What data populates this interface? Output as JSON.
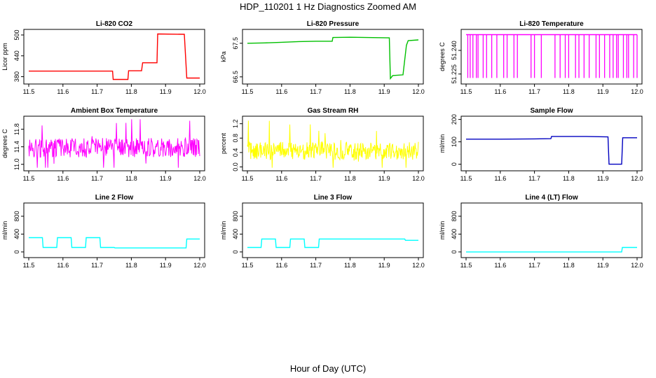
{
  "figure": {
    "title": "HDP_110201  1 Hz Diagnostics Zoomed AM",
    "xlabel": "Hour of Day (UTC)"
  },
  "chart_data": [
    {
      "type": "line",
      "title": "Li-820 CO2",
      "ylabel": "Licor ppm",
      "color": "#ff0000",
      "xlim": [
        11.5,
        12.0
      ],
      "ylim": [
        365,
        510
      ],
      "xticks": [
        "11.5",
        "11.6",
        "11.7",
        "11.8",
        "11.9",
        "12.0"
      ],
      "yticks": [
        "380",
        "440",
        "500"
      ],
      "x": [
        11.5,
        11.6,
        11.7,
        11.745,
        11.747,
        11.79,
        11.792,
        11.83,
        11.833,
        11.875,
        11.877,
        11.955,
        11.962,
        12.0
      ],
      "y": [
        396,
        396,
        396,
        396,
        372,
        372,
        397,
        397,
        420,
        420,
        503,
        502,
        376,
        376
      ]
    },
    {
      "type": "line",
      "title": "Li-820 Pressure",
      "ylabel": "kPa",
      "color": "#00c000",
      "xlim": [
        11.5,
        12.0
      ],
      "ylim": [
        66.35,
        67.85
      ],
      "xticks": [
        "11.5",
        "11.6",
        "11.7",
        "11.8",
        "11.9",
        "12.0"
      ],
      "yticks": [
        "66.5",
        "67.5"
      ],
      "x": [
        11.5,
        11.55,
        11.6,
        11.65,
        11.7,
        11.748,
        11.75,
        11.8,
        11.85,
        11.915,
        11.918,
        11.925,
        11.955,
        11.965,
        11.97,
        12.0
      ],
      "y": [
        67.5,
        67.51,
        67.53,
        67.55,
        67.56,
        67.56,
        67.67,
        67.68,
        67.67,
        67.66,
        66.45,
        66.54,
        66.56,
        67.44,
        67.58,
        67.6
      ]
    },
    {
      "type": "line",
      "title": "Li-820 Temperature",
      "ylabel": "degrees C",
      "color": "#ff00ff",
      "xlim": [
        11.5,
        12.0
      ],
      "ylim": [
        51.22,
        51.252
      ],
      "xticks": [
        "11.5",
        "11.6",
        "11.7",
        "11.8",
        "11.9",
        "12.0"
      ],
      "yticks": [
        "51.225",
        "51.240"
      ],
      "top": 51.25,
      "bottom": 51.2225,
      "drops": [
        11.505,
        11.512,
        11.52,
        11.53,
        11.535,
        11.55,
        11.56,
        11.575,
        11.59,
        11.61,
        11.62,
        11.64,
        11.65,
        11.69,
        11.7,
        11.72,
        11.76,
        11.775,
        11.79,
        11.8,
        11.82,
        11.83,
        11.845,
        11.86,
        11.88,
        11.89,
        11.905,
        11.92,
        11.93,
        11.94,
        11.945,
        11.96,
        11.97,
        11.975,
        11.99,
        12.0
      ]
    },
    {
      "type": "line",
      "title": "Ambient Box Temperature",
      "ylabel": "degrees C",
      "color": "#ff00ff",
      "xlim": [
        11.5,
        12.0
      ],
      "ylim": [
        10.9,
        12.05
      ],
      "xticks": [
        "11.5",
        "11.6",
        "11.7",
        "11.8",
        "11.9",
        "12.0"
      ],
      "yticks": [
        "11.0",
        "11.4",
        "11.8"
      ],
      "noise": {
        "center": 11.38,
        "amplitude": 0.22,
        "peak": 0.5,
        "points": 360
      }
    },
    {
      "type": "line",
      "title": "Gas Stream RH",
      "ylabel": "percent",
      "color": "#ffff00",
      "xlim": [
        11.5,
        12.0
      ],
      "ylim": [
        -0.05,
        1.35
      ],
      "xticks": [
        "11.5",
        "11.6",
        "11.7",
        "11.8",
        "11.9",
        "12.0"
      ],
      "yticks": [
        "0.0",
        "0.4",
        "0.8",
        "1.2"
      ],
      "noise": {
        "center": 0.45,
        "amplitude": 0.25,
        "peak": 0.55,
        "points": 360
      }
    },
    {
      "type": "line",
      "title": "Sample Flow",
      "ylabel": "ml/min",
      "color": "#0000c0",
      "xlim": [
        11.5,
        12.0
      ],
      "ylim": [
        -20,
        205
      ],
      "xticks": [
        "11.5",
        "11.6",
        "11.7",
        "11.8",
        "11.9",
        "12.0"
      ],
      "yticks": [
        "0",
        "100",
        "200"
      ],
      "x": [
        11.5,
        11.6,
        11.7,
        11.748,
        11.75,
        11.8,
        11.85,
        11.915,
        11.918,
        11.955,
        11.958,
        11.965,
        12.0
      ],
      "y": [
        112,
        112,
        113,
        114,
        124,
        124,
        124,
        122,
        0,
        0,
        118,
        118,
        118
      ]
    },
    {
      "type": "line",
      "title": "Line 2 Flow",
      "ylabel": "ml/min",
      "color": "#00ffff",
      "xlim": [
        11.5,
        12.0
      ],
      "ylim": [
        -80,
        1050
      ],
      "xticks": [
        "11.5",
        "11.6",
        "11.7",
        "11.8",
        "11.9",
        "12.0"
      ],
      "yticks": [
        "0",
        "400",
        "800"
      ],
      "x": [
        11.5,
        11.54,
        11.542,
        11.582,
        11.584,
        11.624,
        11.626,
        11.666,
        11.668,
        11.708,
        11.71,
        11.75,
        11.752,
        11.96,
        11.962,
        12.0
      ],
      "y": [
        320,
        320,
        100,
        100,
        320,
        320,
        100,
        100,
        320,
        320,
        100,
        100,
        90,
        90,
        290,
        290
      ]
    },
    {
      "type": "line",
      "title": "Line 3 Flow",
      "ylabel": "ml/min",
      "color": "#00ffff",
      "xlim": [
        11.5,
        12.0
      ],
      "ylim": [
        -80,
        1050
      ],
      "xticks": [
        "11.5",
        "11.6",
        "11.7",
        "11.8",
        "11.9",
        "12.0"
      ],
      "yticks": [
        "0",
        "400",
        "800"
      ],
      "x": [
        11.5,
        11.54,
        11.542,
        11.582,
        11.584,
        11.624,
        11.626,
        11.666,
        11.668,
        11.708,
        11.71,
        11.96,
        11.962,
        12.0
      ],
      "y": [
        100,
        100,
        290,
        290,
        100,
        100,
        290,
        290,
        100,
        100,
        290,
        290,
        260,
        260
      ]
    },
    {
      "type": "line",
      "title": "Line 4 (LT) Flow",
      "ylabel": "ml/min",
      "color": "#00ffff",
      "xlim": [
        11.5,
        12.0
      ],
      "ylim": [
        -80,
        1050
      ],
      "xticks": [
        "11.5",
        "11.6",
        "11.7",
        "11.8",
        "11.9",
        "12.0"
      ],
      "yticks": [
        "0",
        "400",
        "800"
      ],
      "x": [
        11.5,
        11.6,
        11.7,
        11.8,
        11.9,
        11.955,
        11.957,
        12.0
      ],
      "y": [
        0,
        0,
        0,
        0,
        0,
        0,
        100,
        100
      ]
    }
  ]
}
